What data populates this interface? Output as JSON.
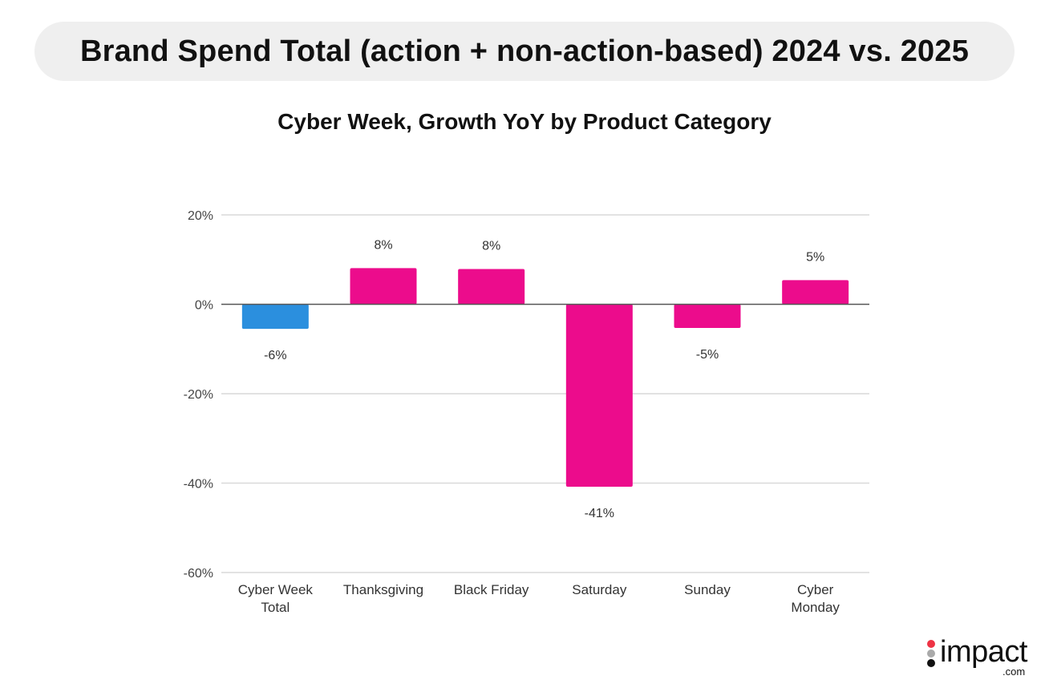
{
  "header": {
    "title": "Brand Spend Total (action + non-action-based) 2024 vs. 2025"
  },
  "chart_data": {
    "type": "bar",
    "title": "Cyber Week, Growth YoY by Product Category",
    "xlabel": "",
    "ylabel": "",
    "categories": [
      [
        "Cyber Week",
        "Total"
      ],
      [
        "Thanksgiving"
      ],
      [
        "Black Friday"
      ],
      [
        "Saturday"
      ],
      [
        "Sunday"
      ],
      [
        "Cyber",
        "Monday"
      ]
    ],
    "values": [
      -5.5,
      8.1,
      7.9,
      -40.8,
      -5.3,
      5.4
    ],
    "data_labels": [
      "-6%",
      "8%",
      "8%",
      "-41%",
      "-5%",
      "5%"
    ],
    "bar_colors": [
      "#2b8fde",
      "#ec0c8c",
      "#ec0c8c",
      "#ec0c8c",
      "#ec0c8c",
      "#ec0c8c"
    ],
    "ylim": [
      -60,
      20
    ],
    "yticks": [
      20,
      0,
      -20,
      -40,
      -60
    ],
    "ytick_labels": [
      "20%",
      "0%",
      "-20%",
      "-40%",
      "-60%"
    ],
    "grid": true,
    "legend": "none"
  },
  "colors": {
    "highlight": "#2b8fde",
    "primary": "#ec0c8c",
    "zero_line": "#555555",
    "grid": "#d9d9d9"
  },
  "logo": {
    "text": "impact",
    "suffix": ".com"
  }
}
